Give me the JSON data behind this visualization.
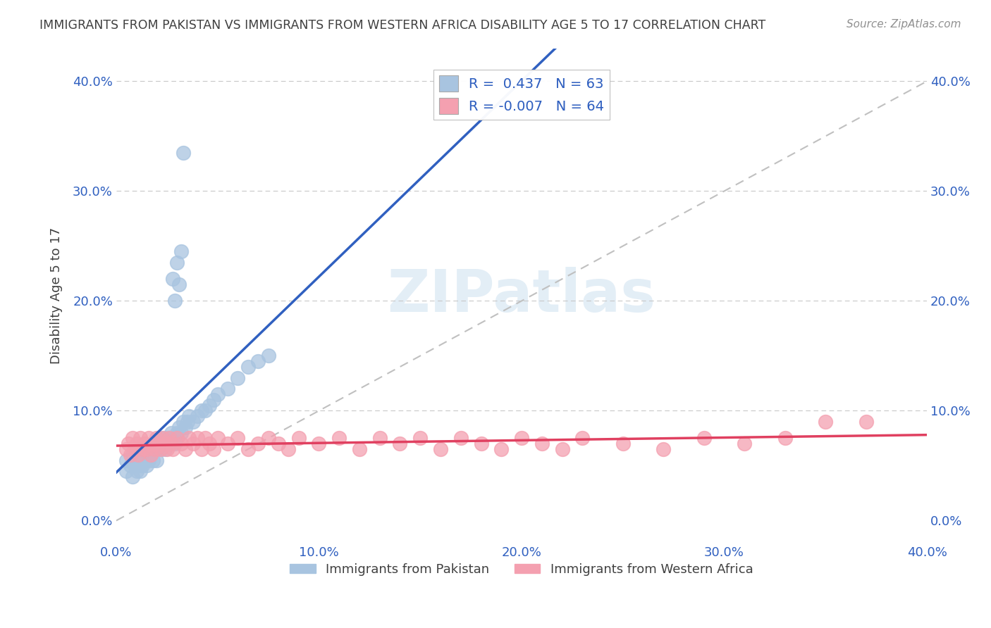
{
  "title": "IMMIGRANTS FROM PAKISTAN VS IMMIGRANTS FROM WESTERN AFRICA DISABILITY AGE 5 TO 17 CORRELATION CHART",
  "source": "Source: ZipAtlas.com",
  "ylabel": "Disability Age 5 to 17",
  "xlim": [
    0.0,
    0.4
  ],
  "ylim": [
    -0.02,
    0.43
  ],
  "x_tick_labels": [
    "0.0%",
    "10.0%",
    "20.0%",
    "30.0%",
    "40.0%"
  ],
  "x_tick_values": [
    0.0,
    0.1,
    0.2,
    0.3,
    0.4
  ],
  "y_tick_labels": [
    "0.0%",
    "10.0%",
    "20.0%",
    "30.0%",
    "40.0%"
  ],
  "y_tick_values": [
    0.0,
    0.1,
    0.2,
    0.3,
    0.4
  ],
  "R_pakistan": 0.437,
  "N_pakistan": 63,
  "R_west_africa": -0.007,
  "N_west_africa": 64,
  "pakistan_color": "#a8c4e0",
  "west_africa_color": "#f4a0b0",
  "pakistan_line_color": "#3060c0",
  "west_africa_line_color": "#e04060",
  "diagonal_color": "#c0c0c0",
  "grid_color": "#c8c8c8",
  "legend_text_color": "#3060c0",
  "title_color": "#404040",
  "source_color": "#909090",
  "watermark": "ZIPatlas",
  "background_color": "#ffffff",
  "pakistan_x": [
    0.005,
    0.005,
    0.007,
    0.008,
    0.008,
    0.009,
    0.01,
    0.01,
    0.011,
    0.011,
    0.012,
    0.012,
    0.013,
    0.013,
    0.014,
    0.014,
    0.015,
    0.015,
    0.016,
    0.016,
    0.017,
    0.018,
    0.018,
    0.019,
    0.02,
    0.02,
    0.021,
    0.022,
    0.022,
    0.023,
    0.024,
    0.024,
    0.025,
    0.026,
    0.027,
    0.028,
    0.029,
    0.03,
    0.03,
    0.031,
    0.032,
    0.033,
    0.034,
    0.035,
    0.036,
    0.038,
    0.04,
    0.042,
    0.044,
    0.046,
    0.048,
    0.05,
    0.055,
    0.06,
    0.065,
    0.07,
    0.075,
    0.028,
    0.03,
    0.032,
    0.029,
    0.031,
    0.033
  ],
  "pakistan_y": [
    0.045,
    0.055,
    0.05,
    0.06,
    0.04,
    0.05,
    0.055,
    0.045,
    0.06,
    0.05,
    0.055,
    0.045,
    0.06,
    0.05,
    0.055,
    0.065,
    0.06,
    0.05,
    0.065,
    0.055,
    0.06,
    0.065,
    0.055,
    0.07,
    0.065,
    0.055,
    0.07,
    0.065,
    0.075,
    0.07,
    0.075,
    0.065,
    0.07,
    0.075,
    0.08,
    0.075,
    0.07,
    0.08,
    0.075,
    0.085,
    0.08,
    0.09,
    0.085,
    0.09,
    0.095,
    0.09,
    0.095,
    0.1,
    0.1,
    0.105,
    0.11,
    0.115,
    0.12,
    0.13,
    0.14,
    0.145,
    0.15,
    0.22,
    0.235,
    0.245,
    0.2,
    0.215,
    0.335
  ],
  "west_africa_x": [
    0.005,
    0.006,
    0.007,
    0.008,
    0.009,
    0.01,
    0.011,
    0.012,
    0.013,
    0.014,
    0.015,
    0.016,
    0.017,
    0.018,
    0.019,
    0.02,
    0.021,
    0.022,
    0.023,
    0.024,
    0.025,
    0.026,
    0.027,
    0.028,
    0.03,
    0.032,
    0.034,
    0.036,
    0.038,
    0.04,
    0.042,
    0.044,
    0.046,
    0.048,
    0.05,
    0.055,
    0.06,
    0.065,
    0.07,
    0.075,
    0.08,
    0.085,
    0.09,
    0.1,
    0.11,
    0.12,
    0.13,
    0.14,
    0.15,
    0.16,
    0.17,
    0.18,
    0.19,
    0.2,
    0.21,
    0.22,
    0.23,
    0.25,
    0.27,
    0.29,
    0.31,
    0.33,
    0.35,
    0.37
  ],
  "west_africa_y": [
    0.065,
    0.07,
    0.06,
    0.075,
    0.065,
    0.07,
    0.06,
    0.075,
    0.065,
    0.07,
    0.065,
    0.075,
    0.06,
    0.07,
    0.065,
    0.075,
    0.07,
    0.065,
    0.075,
    0.07,
    0.065,
    0.075,
    0.07,
    0.065,
    0.075,
    0.07,
    0.065,
    0.075,
    0.07,
    0.075,
    0.065,
    0.075,
    0.07,
    0.065,
    0.075,
    0.07,
    0.075,
    0.065,
    0.07,
    0.075,
    0.07,
    0.065,
    0.075,
    0.07,
    0.075,
    0.065,
    0.075,
    0.07,
    0.075,
    0.065,
    0.075,
    0.07,
    0.065,
    0.075,
    0.07,
    0.065,
    0.075,
    0.07,
    0.065,
    0.075,
    0.07,
    0.075,
    0.09,
    0.09
  ]
}
